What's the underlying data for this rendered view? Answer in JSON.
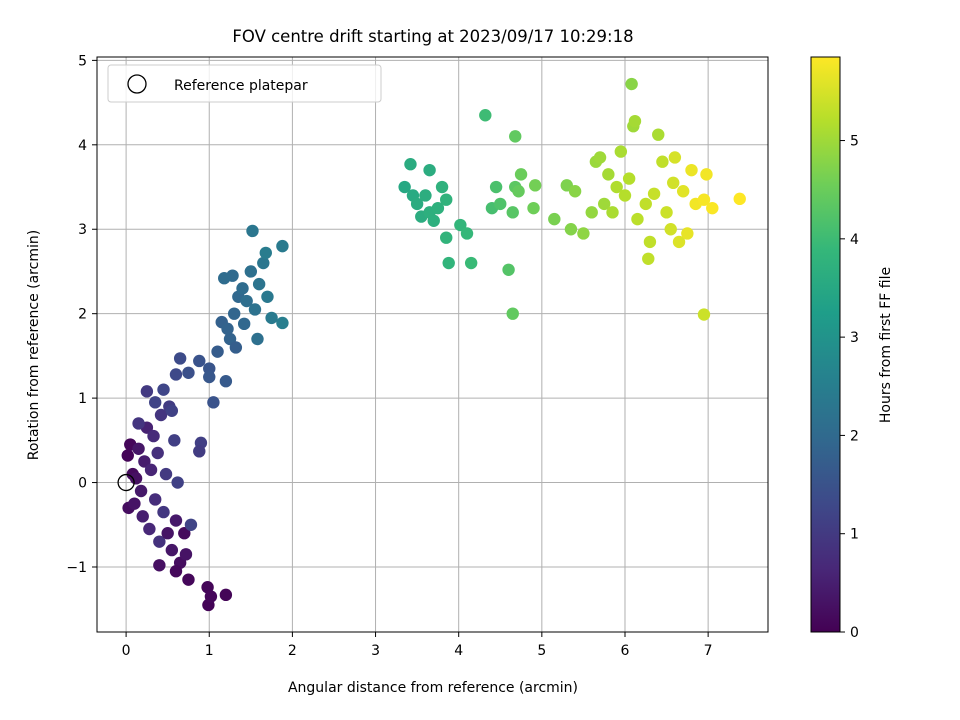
{
  "chart_data": {
    "type": "scatter",
    "title": "FOV centre drift starting at 2023/09/17 10:29:18",
    "xlabel": "Angular distance from reference (arcmin)",
    "ylabel": "Rotation from reference (arcmin)",
    "xlim": [
      -0.35,
      7.72
    ],
    "ylim": [
      -1.77,
      5.04
    ],
    "xticks": [
      0,
      1,
      2,
      3,
      4,
      5,
      6,
      7
    ],
    "xtick_labels": [
      "0",
      "1",
      "2",
      "3",
      "4",
      "5",
      "6",
      "7"
    ],
    "yticks": [
      -1,
      0,
      1,
      2,
      3,
      4,
      5
    ],
    "ytick_labels": [
      "−1",
      "0",
      "1",
      "2",
      "3",
      "4",
      "5"
    ],
    "grid": true,
    "legend": {
      "placement": "upper-left",
      "entries": [
        "Reference platepar"
      ]
    },
    "reference_point": {
      "x": 0,
      "y": 0
    },
    "colorbar": {
      "label": "Hours from first FF file",
      "colormap": "viridis",
      "range": [
        0,
        5.85
      ],
      "ticks": [
        0,
        1,
        2,
        3,
        4,
        5
      ],
      "tick_labels": [
        "0",
        "1",
        "2",
        "3",
        "4",
        "5"
      ]
    },
    "colormap_stops": [
      "#440154",
      "#482878",
      "#3e4989",
      "#31688e",
      "#26828e",
      "#1f9e89",
      "#35b779",
      "#6ece58",
      "#b5de2b",
      "#fde725"
    ],
    "points": [
      [
        0.02,
        0.32,
        0.05
      ],
      [
        0.05,
        0.45,
        0.1
      ],
      [
        0.08,
        0.1,
        0.15
      ],
      [
        0.03,
        -0.3,
        0.2
      ],
      [
        0.12,
        0.05,
        0.25
      ],
      [
        0.1,
        -0.25,
        0.3
      ],
      [
        0.15,
        0.4,
        0.35
      ],
      [
        0.18,
        -0.1,
        0.4
      ],
      [
        0.22,
        0.25,
        0.45
      ],
      [
        0.2,
        -0.4,
        0.5
      ],
      [
        0.25,
        0.65,
        0.55
      ],
      [
        0.3,
        0.15,
        0.6
      ],
      [
        0.28,
        -0.55,
        0.65
      ],
      [
        0.33,
        0.55,
        0.7
      ],
      [
        0.35,
        -0.2,
        0.75
      ],
      [
        0.38,
        0.35,
        0.8
      ],
      [
        0.4,
        -0.7,
        0.85
      ],
      [
        0.42,
        0.8,
        0.9
      ],
      [
        0.45,
        -0.35,
        0.95
      ],
      [
        0.48,
        0.1,
        1.0
      ],
      [
        0.5,
        -0.6,
        0.3
      ],
      [
        0.52,
        0.9,
        1.05
      ],
      [
        0.55,
        -0.8,
        0.35
      ],
      [
        0.58,
        0.5,
        1.1
      ],
      [
        0.6,
        -0.45,
        0.4
      ],
      [
        0.62,
        0.0,
        1.15
      ],
      [
        0.65,
        -0.95,
        0.2
      ],
      [
        0.7,
        -0.6,
        0.15
      ],
      [
        0.72,
        -0.85,
        0.3
      ],
      [
        0.75,
        -1.15,
        0.1
      ],
      [
        0.4,
        -0.98,
        0.25
      ],
      [
        0.6,
        -1.05,
        0.12
      ],
      [
        0.98,
        -1.24,
        0.08
      ],
      [
        0.99,
        -1.45,
        0.05
      ],
      [
        1.02,
        -1.35,
        0.1
      ],
      [
        1.2,
        -1.33,
        0.06
      ],
      [
        0.78,
        -0.5,
        1.2
      ],
      [
        0.9,
        0.47,
        1.1
      ],
      [
        0.88,
        0.37,
        1.05
      ],
      [
        0.15,
        0.7,
        0.9
      ],
      [
        0.25,
        1.08,
        1.0
      ],
      [
        0.35,
        0.95,
        1.2
      ],
      [
        0.45,
        1.1,
        1.25
      ],
      [
        0.55,
        0.85,
        1.15
      ],
      [
        0.6,
        1.28,
        1.3
      ],
      [
        0.65,
        1.47,
        1.35
      ],
      [
        0.75,
        1.3,
        1.45
      ],
      [
        0.88,
        1.44,
        1.5
      ],
      [
        1.0,
        1.35,
        1.55
      ],
      [
        1.0,
        1.25,
        1.6
      ],
      [
        1.2,
        1.2,
        1.65
      ],
      [
        1.05,
        0.95,
        1.5
      ],
      [
        1.1,
        1.55,
        1.7
      ],
      [
        1.15,
        1.9,
        1.8
      ],
      [
        1.25,
        1.7,
        1.85
      ],
      [
        1.3,
        2.0,
        1.9
      ],
      [
        1.35,
        2.2,
        1.95
      ],
      [
        1.28,
        2.45,
        2.0
      ],
      [
        1.4,
        2.3,
        2.05
      ],
      [
        1.45,
        2.15,
        2.1
      ],
      [
        1.5,
        2.5,
        2.15
      ],
      [
        1.55,
        2.05,
        2.2
      ],
      [
        1.6,
        2.35,
        2.25
      ],
      [
        1.65,
        2.6,
        2.3
      ],
      [
        1.7,
        2.2,
        2.35
      ],
      [
        1.75,
        1.95,
        2.4
      ],
      [
        1.52,
        2.98,
        2.3
      ],
      [
        1.68,
        2.72,
        2.45
      ],
      [
        1.88,
        2.8,
        2.4
      ],
      [
        1.88,
        1.89,
        2.5
      ],
      [
        1.18,
        2.42,
        2.05
      ],
      [
        1.22,
        1.82,
        1.85
      ],
      [
        1.32,
        1.6,
        1.75
      ],
      [
        1.42,
        1.88,
        1.95
      ],
      [
        1.58,
        1.7,
        2.15
      ],
      [
        3.35,
        3.5,
        3.5
      ],
      [
        3.45,
        3.4,
        3.55
      ],
      [
        3.5,
        3.3,
        3.6
      ],
      [
        3.55,
        3.15,
        3.62
      ],
      [
        3.6,
        3.4,
        3.65
      ],
      [
        3.65,
        3.2,
        3.7
      ],
      [
        3.7,
        3.1,
        3.68
      ],
      [
        3.75,
        3.25,
        3.72
      ],
      [
        3.8,
        3.5,
        3.75
      ],
      [
        3.85,
        3.35,
        3.78
      ],
      [
        3.42,
        3.77,
        3.6
      ],
      [
        3.65,
        3.7,
        3.62
      ],
      [
        3.85,
        2.9,
        3.8
      ],
      [
        3.88,
        2.6,
        3.82
      ],
      [
        4.02,
        3.05,
        3.85
      ],
      [
        4.1,
        2.95,
        3.9
      ],
      [
        4.15,
        2.6,
        3.95
      ],
      [
        4.32,
        4.35,
        4.0
      ],
      [
        4.4,
        3.25,
        4.1
      ],
      [
        4.45,
        3.5,
        4.15
      ],
      [
        4.5,
        3.3,
        4.2
      ],
      [
        4.6,
        2.52,
        4.25
      ],
      [
        4.65,
        3.2,
        4.3
      ],
      [
        4.68,
        3.5,
        4.35
      ],
      [
        4.68,
        4.1,
        4.4
      ],
      [
        4.72,
        3.45,
        4.45
      ],
      [
        4.75,
        3.65,
        4.5
      ],
      [
        4.65,
        2.0,
        4.4
      ],
      [
        4.9,
        3.25,
        4.55
      ],
      [
        4.92,
        3.52,
        4.6
      ],
      [
        5.15,
        3.12,
        4.65
      ],
      [
        5.3,
        3.52,
        4.7
      ],
      [
        5.35,
        3.0,
        4.75
      ],
      [
        5.4,
        3.45,
        4.8
      ],
      [
        5.5,
        2.95,
        4.85
      ],
      [
        5.6,
        3.2,
        4.9
      ],
      [
        5.65,
        3.8,
        4.95
      ],
      [
        5.7,
        3.85,
        5.0
      ],
      [
        5.75,
        3.3,
        5.0
      ],
      [
        5.8,
        3.65,
        5.05
      ],
      [
        5.85,
        3.2,
        5.1
      ],
      [
        5.9,
        3.5,
        5.15
      ],
      [
        5.95,
        3.92,
        5.1
      ],
      [
        6.0,
        3.4,
        5.2
      ],
      [
        6.05,
        3.6,
        5.2
      ],
      [
        6.08,
        4.72,
        4.8
      ],
      [
        6.1,
        4.22,
        5.0
      ],
      [
        6.12,
        4.28,
        5.05
      ],
      [
        6.15,
        3.12,
        5.25
      ],
      [
        6.25,
        3.3,
        5.3
      ],
      [
        6.3,
        2.85,
        5.3
      ],
      [
        6.35,
        3.42,
        5.35
      ],
      [
        6.4,
        4.12,
        5.1
      ],
      [
        6.45,
        3.8,
        5.3
      ],
      [
        6.5,
        3.2,
        5.4
      ],
      [
        6.55,
        3.0,
        5.45
      ],
      [
        6.58,
        3.55,
        5.45
      ],
      [
        6.6,
        3.85,
        5.5
      ],
      [
        6.65,
        2.85,
        5.55
      ],
      [
        6.7,
        3.45,
        5.6
      ],
      [
        6.75,
        2.95,
        5.65
      ],
      [
        6.8,
        3.7,
        5.7
      ],
      [
        6.85,
        3.3,
        5.75
      ],
      [
        6.95,
        3.35,
        5.8
      ],
      [
        7.05,
        3.25,
        5.82
      ],
      [
        6.28,
        2.65,
        5.3
      ],
      [
        6.95,
        1.99,
        5.4
      ],
      [
        6.98,
        3.65,
        5.75
      ],
      [
        7.38,
        3.36,
        5.85
      ]
    ]
  }
}
